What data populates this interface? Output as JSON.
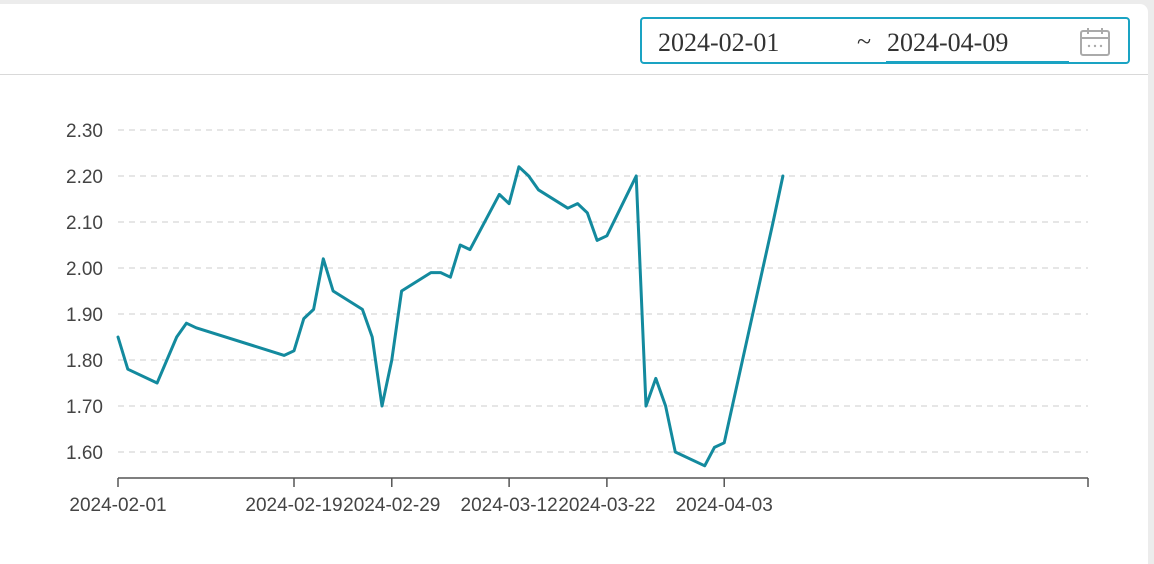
{
  "date_range": {
    "start": "2024-02-01",
    "separator": "~",
    "end": "2024-04-09",
    "icon": "calendar-icon"
  },
  "colors": {
    "line": "#138a9e",
    "accent": "#1aa3c3",
    "grid": "#cccccc",
    "axis": "#555555"
  },
  "chart_data": {
    "type": "line",
    "title": "",
    "xlabel": "",
    "ylabel": "",
    "ylim": [
      1.55,
      2.32
    ],
    "grid": true,
    "y_ticks": [
      "1.60",
      "1.70",
      "1.80",
      "1.90",
      "2.00",
      "2.10",
      "2.20",
      "2.30"
    ],
    "x_ticks": [
      "2024-02-01",
      "2024-02-19",
      "2024-02-29",
      "2024-03-12",
      "2024-03-22",
      "2024-04-03"
    ],
    "x": [
      "2024-02-01",
      "2024-02-02",
      "2024-02-05",
      "2024-02-06",
      "2024-02-07",
      "2024-02-08",
      "2024-02-09",
      "2024-02-18",
      "2024-02-19",
      "2024-02-20",
      "2024-02-21",
      "2024-02-22",
      "2024-02-23",
      "2024-02-26",
      "2024-02-27",
      "2024-02-28",
      "2024-02-29",
      "2024-03-01",
      "2024-03-04",
      "2024-03-05",
      "2024-03-06",
      "2024-03-07",
      "2024-03-08",
      "2024-03-11",
      "2024-03-12",
      "2024-03-13",
      "2024-03-14",
      "2024-03-15",
      "2024-03-18",
      "2024-03-19",
      "2024-03-20",
      "2024-03-21",
      "2024-03-22",
      "2024-03-25",
      "2024-03-26",
      "2024-03-27",
      "2024-03-28",
      "2024-03-29",
      "2024-04-01",
      "2024-04-02",
      "2024-04-03",
      "2024-04-08",
      "2024-04-09"
    ],
    "series": [
      {
        "values": [
          1.85,
          1.78,
          1.75,
          1.8,
          1.85,
          1.88,
          1.87,
          1.81,
          1.82,
          1.89,
          1.91,
          2.02,
          1.95,
          1.91,
          1.85,
          1.7,
          1.8,
          1.95,
          1.99,
          1.99,
          1.98,
          2.05,
          2.04,
          2.16,
          2.14,
          2.22,
          2.2,
          2.17,
          2.13,
          2.14,
          2.12,
          2.06,
          2.07,
          2.2,
          1.7,
          1.76,
          1.7,
          1.6,
          1.57,
          1.61,
          1.62,
          2.1,
          2.2
        ]
      }
    ]
  }
}
